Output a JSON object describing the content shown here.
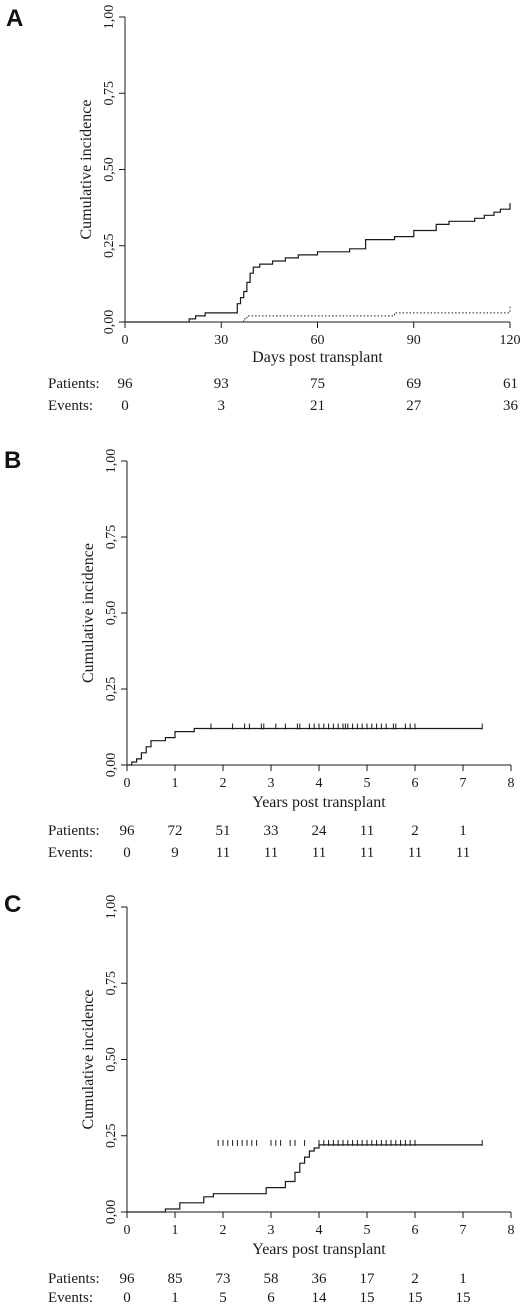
{
  "chart_data": [
    {
      "panel": "A",
      "type": "line",
      "xlabel": "Days post transplant",
      "ylabel": "Cumulative incidence",
      "xlim": [
        0,
        120
      ],
      "ylim": [
        0,
        1
      ],
      "xticks": [
        0,
        30,
        60,
        90,
        120
      ],
      "xtick_labels": [
        "0",
        "30",
        "60",
        "90",
        "120"
      ],
      "yticks": [
        0,
        0.25,
        0.5,
        0.75,
        1
      ],
      "ytick_labels": [
        "0,00",
        "0,25",
        "0,50",
        "0,75",
        "1,00"
      ],
      "series": [
        {
          "style": "solid",
          "x": [
            0,
            20,
            20,
            22,
            22,
            25,
            25,
            35,
            35,
            36,
            36,
            37,
            37,
            38,
            38,
            39,
            39,
            40,
            40,
            42,
            42,
            46,
            46,
            50,
            50,
            54,
            54,
            60,
            60,
            70,
            70,
            75,
            75,
            84,
            84,
            90,
            90,
            97,
            97,
            101,
            101,
            109,
            109,
            112,
            112,
            115,
            115,
            117,
            117,
            120,
            120
          ],
          "y": [
            0,
            0,
            0.01,
            0.01,
            0.02,
            0.02,
            0.03,
            0.03,
            0.06,
            0.06,
            0.08,
            0.08,
            0.1,
            0.1,
            0.13,
            0.13,
            0.16,
            0.16,
            0.18,
            0.18,
            0.19,
            0.19,
            0.2,
            0.2,
            0.21,
            0.21,
            0.22,
            0.22,
            0.23,
            0.23,
            0.24,
            0.24,
            0.27,
            0.27,
            0.28,
            0.28,
            0.3,
            0.3,
            0.32,
            0.32,
            0.33,
            0.33,
            0.34,
            0.34,
            0.35,
            0.35,
            0.36,
            0.36,
            0.37,
            0.37,
            0.39
          ]
        },
        {
          "style": "dotted",
          "x": [
            37,
            37,
            38,
            38,
            84,
            84,
            120,
            120
          ],
          "y": [
            0,
            0.01,
            0.01,
            0.02,
            0.02,
            0.03,
            0.03,
            0.05
          ]
        }
      ],
      "censor_x": [],
      "censor_y": 0,
      "risk_table": {
        "x": [
          0,
          30,
          60,
          90,
          120
        ],
        "rows": [
          {
            "label": "Patients:",
            "values": [
              "96",
              "93",
              "75",
              "69",
              "61"
            ]
          },
          {
            "label": "Events:",
            "values": [
              "0",
              "3",
              "21",
              "27",
              "36"
            ]
          }
        ]
      }
    },
    {
      "panel": "B",
      "type": "line",
      "xlabel": "Years post transplant",
      "ylabel": "Cumulative incidence",
      "xlim": [
        0,
        8
      ],
      "ylim": [
        0,
        1
      ],
      "xticks": [
        0,
        1,
        2,
        3,
        4,
        5,
        6,
        7,
        8
      ],
      "xtick_labels": [
        "0",
        "1",
        "2",
        "3",
        "4",
        "5",
        "6",
        "7",
        "8"
      ],
      "yticks": [
        0,
        0.25,
        0.5,
        0.75,
        1
      ],
      "ytick_labels": [
        "0,00",
        "0,25",
        "0,50",
        "0,75",
        "1,00"
      ],
      "series": [
        {
          "style": "solid",
          "x": [
            0,
            0.1,
            0.1,
            0.2,
            0.2,
            0.3,
            0.3,
            0.4,
            0.4,
            0.5,
            0.5,
            0.8,
            0.8,
            1.0,
            1.0,
            1.4,
            1.4,
            7.4
          ],
          "y": [
            0,
            0,
            0.01,
            0.01,
            0.02,
            0.02,
            0.04,
            0.04,
            0.06,
            0.06,
            0.08,
            0.08,
            0.09,
            0.09,
            0.11,
            0.11,
            0.12,
            0.12
          ]
        }
      ],
      "censor_x": [
        1.75,
        2.2,
        2.45,
        2.55,
        2.8,
        2.85,
        3.1,
        3.3,
        3.55,
        3.6,
        3.8,
        3.9,
        4.0,
        4.1,
        4.2,
        4.3,
        4.4,
        4.5,
        4.55,
        4.6,
        4.7,
        4.8,
        4.9,
        5.0,
        5.1,
        5.2,
        5.3,
        5.4,
        5.55,
        5.6,
        5.8,
        5.9,
        6.0,
        7.4
      ],
      "censor_y": 0.12,
      "risk_table": {
        "x": [
          0,
          1,
          2,
          3,
          4,
          5,
          6,
          7
        ],
        "rows": [
          {
            "label": "Patients:",
            "values": [
              "96",
              "72",
              "51",
              "33",
              "24",
              "11",
              "2",
              "1"
            ]
          },
          {
            "label": "Events:",
            "values": [
              "0",
              "9",
              "11",
              "11",
              "11",
              "11",
              "11",
              "11"
            ]
          }
        ]
      }
    },
    {
      "panel": "C",
      "type": "line",
      "xlabel": "Years post transplant",
      "ylabel": "Cumulative incidence",
      "xlim": [
        0,
        8
      ],
      "ylim": [
        0,
        1
      ],
      "xticks": [
        0,
        1,
        2,
        3,
        4,
        5,
        6,
        7,
        8
      ],
      "xtick_labels": [
        "0",
        "1",
        "2",
        "3",
        "4",
        "5",
        "6",
        "7",
        "8"
      ],
      "yticks": [
        0,
        0.25,
        0.5,
        0.75,
        1
      ],
      "ytick_labels": [
        "0,00",
        "0,25",
        "0,50",
        "0,75",
        "1,00"
      ],
      "series": [
        {
          "style": "solid",
          "x": [
            0,
            0.8,
            0.8,
            1.1,
            1.1,
            1.6,
            1.6,
            1.8,
            1.8,
            2.9,
            2.9,
            3.3,
            3.3,
            3.5,
            3.5,
            3.6,
            3.6,
            3.7,
            3.7,
            3.8,
            3.8,
            3.9,
            3.9,
            4.0,
            4.0,
            7.4
          ],
          "y": [
            0,
            0,
            0.01,
            0.01,
            0.03,
            0.03,
            0.05,
            0.05,
            0.06,
            0.06,
            0.08,
            0.08,
            0.1,
            0.1,
            0.13,
            0.13,
            0.16,
            0.16,
            0.18,
            0.18,
            0.2,
            0.2,
            0.21,
            0.21,
            0.22,
            0.22
          ]
        }
      ],
      "censor_x": [
        1.9,
        2.0,
        2.1,
        2.2,
        2.3,
        2.4,
        2.5,
        2.6,
        2.7,
        3.0,
        3.1,
        3.2,
        3.4,
        3.5,
        3.7,
        4.0,
        4.1,
        4.2,
        4.3,
        4.4,
        4.5,
        4.6,
        4.7,
        4.8,
        4.9,
        5.0,
        5.1,
        5.2,
        5.3,
        5.4,
        5.5,
        5.6,
        5.7,
        5.8,
        5.9,
        6.0,
        7.4
      ],
      "censor_y": 0.22,
      "risk_table": {
        "x": [
          0,
          1,
          2,
          3,
          4,
          5,
          6,
          7
        ],
        "rows": [
          {
            "label": "Patients:",
            "values": [
              "96",
              "85",
              "73",
              "58",
              "36",
              "17",
              "2",
              "1"
            ]
          },
          {
            "label": "Events:",
            "values": [
              "0",
              "1",
              "5",
              "6",
              "14",
              "15",
              "15",
              "15"
            ]
          }
        ]
      }
    }
  ]
}
